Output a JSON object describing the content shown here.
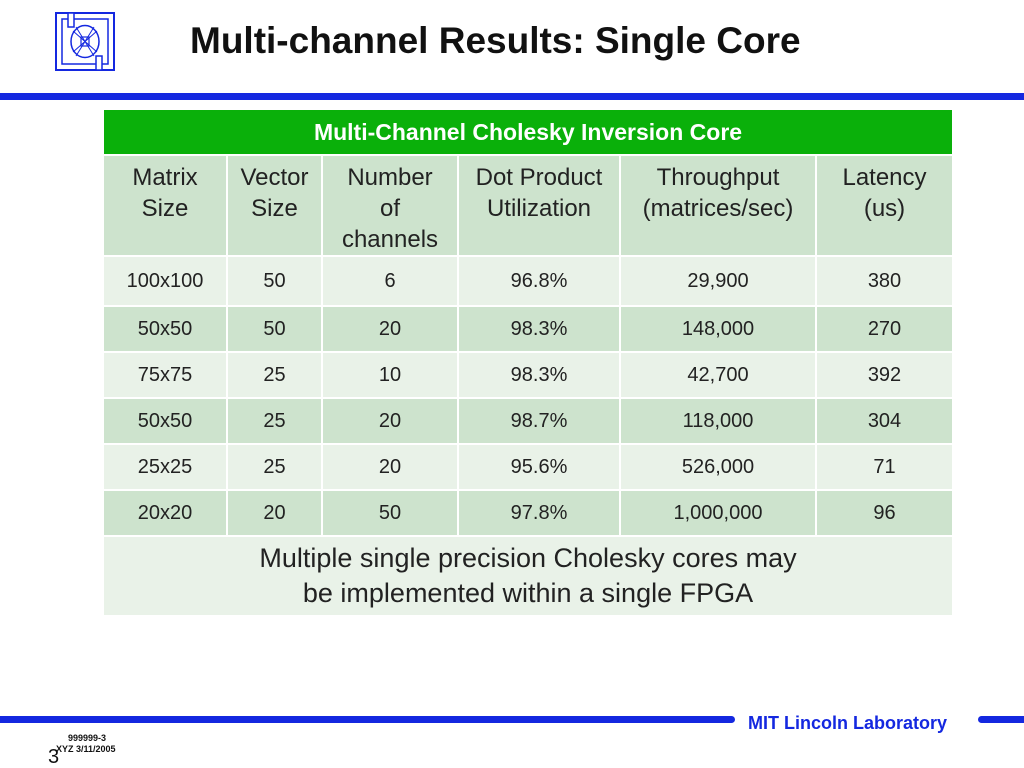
{
  "slide": {
    "title": "Multi-channel Results: Single Core"
  },
  "table": {
    "header": "Multi-Channel Cholesky Inversion Core",
    "columns": [
      [
        "Matrix",
        "Size"
      ],
      [
        "Vector",
        "Size"
      ],
      [
        "Number",
        "of",
        "channels"
      ],
      [
        "Dot Product",
        "Utilization"
      ],
      [
        "Throughput",
        "(matrices/sec)"
      ],
      [
        "Latency",
        "(us)"
      ]
    ],
    "rows": [
      [
        "100x100",
        "50",
        "6",
        "96.8%",
        "29,900",
        "380"
      ],
      [
        "50x50",
        "50",
        "20",
        "98.3%",
        "148,000",
        "270"
      ],
      [
        "75x75",
        "25",
        "10",
        "98.3%",
        "42,700",
        "392"
      ],
      [
        "50x50",
        "25",
        "20",
        "98.7%",
        "118,000",
        "304"
      ],
      [
        "25x25",
        "25",
        "20",
        "95.6%",
        "526,000",
        "71"
      ],
      [
        "20x20",
        "20",
        "50",
        "97.8%",
        "1,000,000",
        "96"
      ]
    ],
    "note": [
      "Multiple single precision Cholesky cores may",
      "be implemented within a single FPGA"
    ]
  },
  "footer": {
    "lab": "MIT Lincoln Laboratory",
    "id": "999999-3",
    "date": "XYZ 3/11/2005",
    "page": "3"
  },
  "colors": {
    "accent_blue": "#1428e0",
    "header_green": "#0ab00a",
    "row_dark": "#cde3cd",
    "row_light": "#e9f2e8"
  }
}
